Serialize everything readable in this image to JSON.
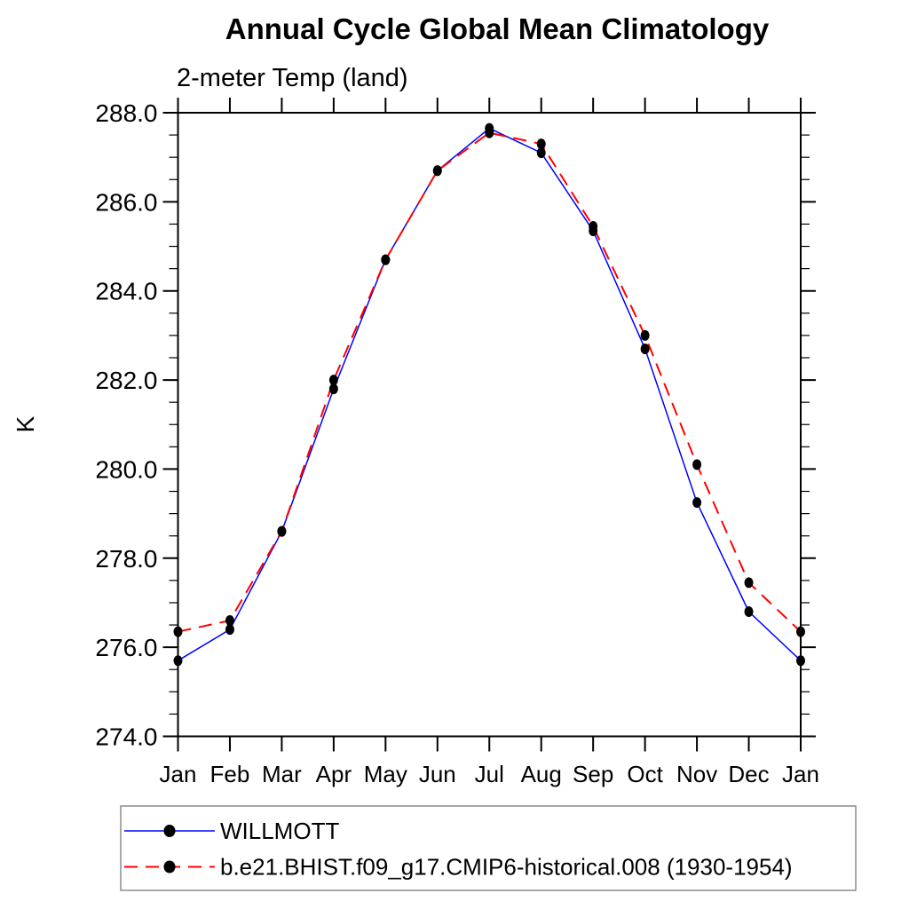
{
  "page": {
    "background": "#ffffff"
  },
  "chart_data": {
    "type": "line",
    "title": "Annual Cycle Global Mean Climatology",
    "subtitle": "2-meter Temp (land)",
    "xlabel": "",
    "ylabel": "K",
    "categories": [
      "Jan",
      "Feb",
      "Mar",
      "Apr",
      "May",
      "Jun",
      "Jul",
      "Aug",
      "Sep",
      "Oct",
      "Nov",
      "Dec",
      "Jan"
    ],
    "ylim": [
      274.0,
      288.0
    ],
    "ytick_interval": 2.0,
    "yminor_tick_interval": 0.5,
    "ytick_labels": [
      "274.0",
      "276.0",
      "278.0",
      "280.0",
      "282.0",
      "284.0",
      "286.0",
      "288.0"
    ],
    "grid": false,
    "legend_position": "bottom-left",
    "marker_color": "#000000",
    "series": [
      {
        "name": "WILLMOTT",
        "color": "#0000ff",
        "line_style": "solid",
        "marker": "filled-circle",
        "values": [
          275.7,
          276.4,
          278.6,
          281.8,
          284.7,
          286.7,
          287.65,
          287.1,
          285.35,
          282.7,
          279.25,
          276.8,
          275.7
        ]
      },
      {
        "name": "b.e21.BHIST.f09_g17.CMIP6-historical.008 (1930-1954)",
        "color": "#ff0000",
        "line_style": "dashed",
        "marker": "filled-circle",
        "values": [
          276.35,
          276.6,
          278.6,
          282.0,
          284.7,
          286.7,
          287.55,
          287.3,
          285.45,
          283.0,
          280.1,
          277.45,
          276.35
        ]
      }
    ]
  }
}
